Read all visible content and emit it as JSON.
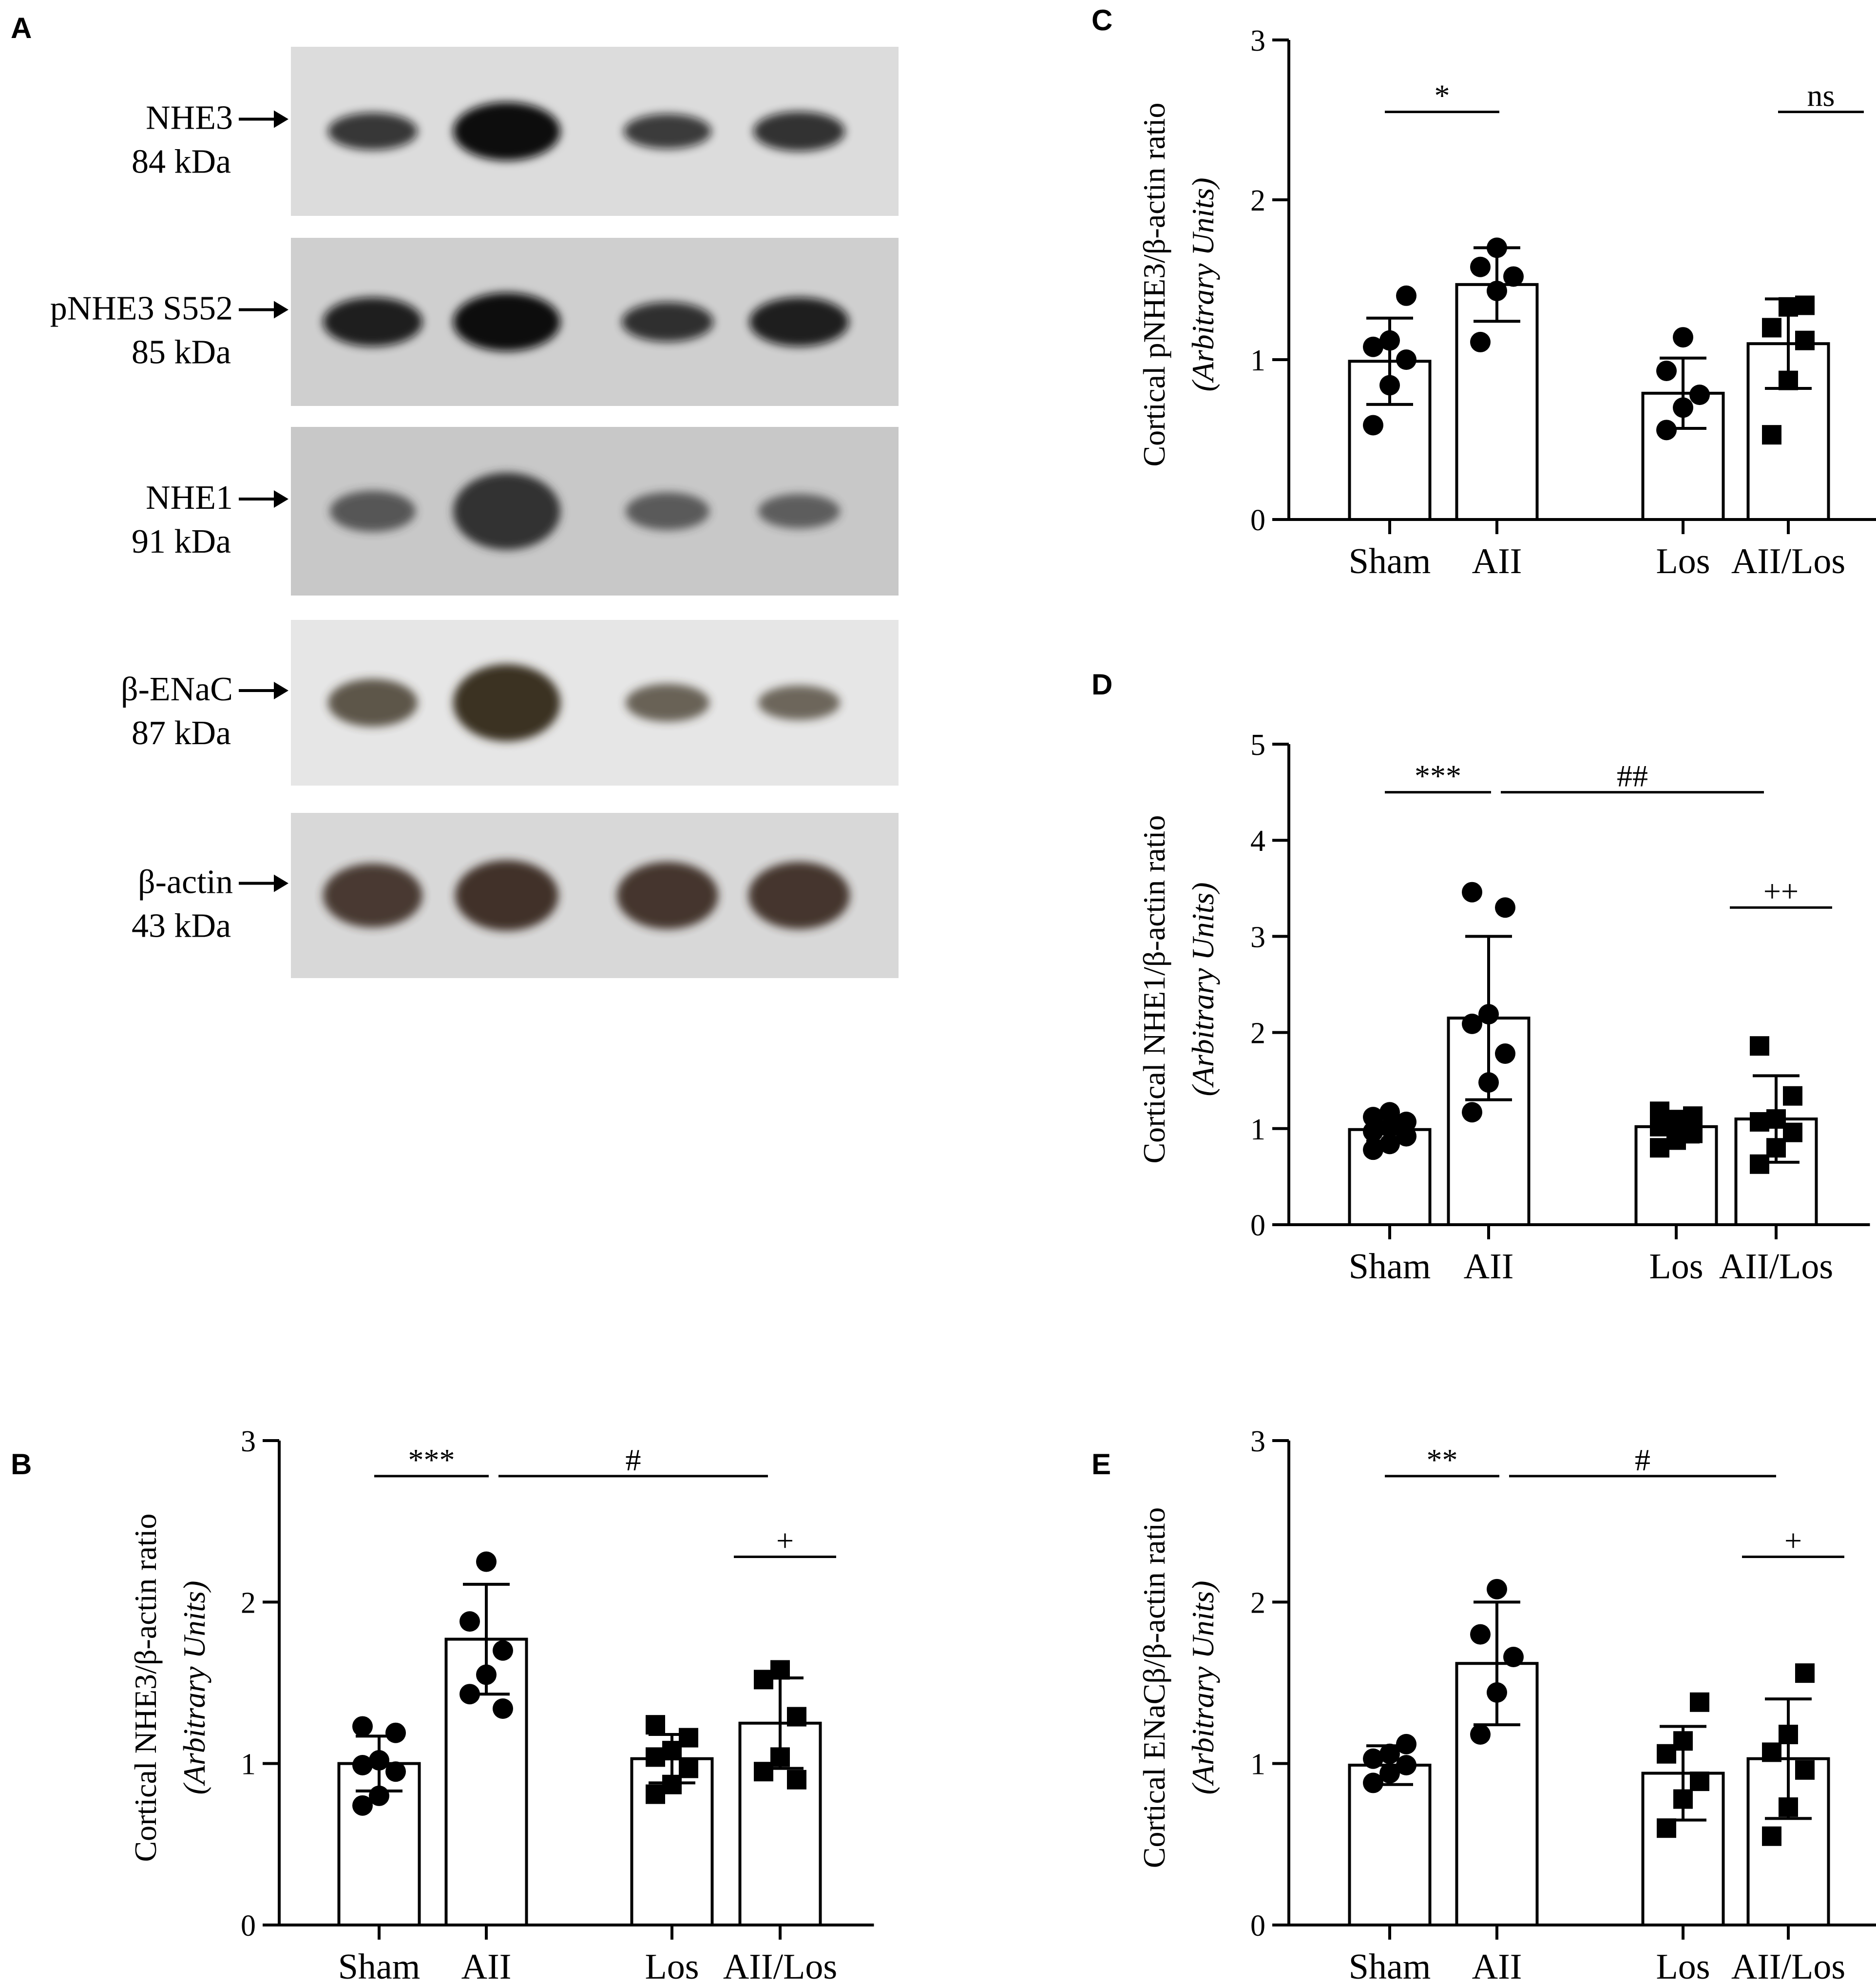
{
  "western_blot": {
    "panel": "A",
    "bands": [
      {
        "name": "NHE3",
        "size": "84 kDa",
        "intensity": [
          0.55,
          1.0,
          0.5,
          0.6
        ],
        "bg": "#dcdcdc",
        "ink": "#111111"
      },
      {
        "name": "pNHE3 S552",
        "size": "85 kDa",
        "intensity": [
          0.8,
          1.0,
          0.6,
          0.8
        ],
        "bg": "#cfcfcf",
        "ink": "#111111"
      },
      {
        "name": "NHE1",
        "size": "91 kDa",
        "intensity": [
          0.45,
          1.0,
          0.4,
          0.35
        ],
        "bg": "#c8c8c8",
        "ink": "#333333"
      },
      {
        "name": "β-ENaC",
        "size": "87 kDa",
        "intensity": [
          0.55,
          1.0,
          0.4,
          0.35
        ],
        "bg": "#e6e6e6",
        "ink": "#3a3322"
      },
      {
        "name": "β-actin",
        "size": "43 kDa",
        "intensity": [
          0.8,
          0.9,
          0.85,
          0.85
        ],
        "bg": "#d8d8d8",
        "ink": "#3a2a20"
      }
    ]
  },
  "chart_data": [
    {
      "panel": "B",
      "type": "bar",
      "categories": [
        "Sham",
        "AII",
        "Los",
        "AII/Los"
      ],
      "ylabel": "Cortical NHE3/β-actin ratio",
      "ylabel_italic": "(Arbitrary Units)",
      "ylim": [
        0,
        3
      ],
      "yticks": [
        "0",
        "1",
        "2",
        "3"
      ],
      "means": [
        1.0,
        1.77,
        1.03,
        1.25
      ],
      "sd": [
        0.17,
        0.34,
        0.15,
        0.28
      ],
      "markers": [
        "circle",
        "circle",
        "square",
        "square"
      ],
      "points": [
        [
          0.74,
          0.8,
          0.95,
          0.99,
          1.02,
          1.19,
          1.23
        ],
        [
          1.43,
          1.55,
          1.7,
          1.88,
          2.25,
          1.34
        ],
        [
          0.81,
          0.87,
          0.97,
          1.04,
          1.08,
          1.16,
          1.24
        ],
        [
          0.95,
          1.04,
          1.29,
          1.52,
          1.58,
          0.9
        ]
      ],
      "significance": [
        {
          "label": "***",
          "from": 0,
          "to": 1,
          "y": 2.78
        },
        {
          "label": "#",
          "from": 1,
          "to": 3,
          "y": 2.78
        },
        {
          "label": "+",
          "from": 3,
          "to": 3,
          "y": 2.28
        }
      ]
    },
    {
      "panel": "C",
      "type": "bar",
      "categories": [
        "Sham",
        "AII",
        "Los",
        "AII/Los"
      ],
      "ylabel": "Cortical pNHE3/β-actin ratio",
      "ylabel_italic": "(Arbitrary Units)",
      "ylim": [
        0,
        3
      ],
      "yticks": [
        "0",
        "1",
        "2",
        "3"
      ],
      "means": [
        0.99,
        1.47,
        0.79,
        1.1
      ],
      "sd": [
        0.27,
        0.23,
        0.22,
        0.28
      ],
      "markers": [
        "circle",
        "circle",
        "circle",
        "square"
      ],
      "points": [
        [
          0.59,
          0.84,
          1.0,
          1.08,
          1.12,
          1.4
        ],
        [
          1.11,
          1.43,
          1.52,
          1.58,
          1.7
        ],
        [
          0.56,
          0.7,
          0.78,
          0.93,
          1.14
        ],
        [
          0.53,
          0.87,
          1.12,
          1.2,
          1.33,
          1.34
        ]
      ],
      "significance": [
        {
          "label": "*",
          "from": 0,
          "to": 1,
          "y": 2.55
        },
        {
          "label": "ns",
          "from": 2.85,
          "to": 3.9,
          "y": 2.55
        }
      ]
    },
    {
      "panel": "D",
      "type": "bar",
      "categories": [
        "Sham",
        "AII",
        "Los",
        "AII/Los"
      ],
      "ylabel": "Cortical NHE1/β-actin ratio",
      "ylabel_italic": "(Arbitrary Units)",
      "ylim": [
        0,
        5
      ],
      "yticks": [
        "0",
        "1",
        "2",
        "3",
        "4",
        "5"
      ],
      "means": [
        0.99,
        2.15,
        1.02,
        1.1
      ],
      "sd": [
        0.12,
        0.85,
        0.16,
        0.45
      ],
      "markers": [
        "circle",
        "circle",
        "square",
        "square"
      ],
      "points": [
        [
          0.78,
          0.84,
          0.92,
          0.97,
          1.01,
          1.07,
          1.12,
          1.17
        ],
        [
          1.17,
          1.48,
          1.78,
          2.09,
          2.19,
          3.3,
          3.46
        ],
        [
          0.8,
          0.88,
          0.95,
          1.02,
          1.08,
          1.13,
          1.18
        ],
        [
          0.63,
          0.8,
          0.96,
          1.07,
          1.1,
          1.34,
          1.86
        ]
      ],
      "significance": [
        {
          "label": "***",
          "from": 0,
          "to": 1,
          "y": 4.5
        },
        {
          "label": "##",
          "from": 1,
          "to": 3,
          "y": 4.5
        },
        {
          "label": "++",
          "from": 3,
          "to": 3,
          "y": 3.3
        }
      ]
    },
    {
      "panel": "E",
      "type": "bar",
      "categories": [
        "Sham",
        "AII",
        "Los",
        "AII/Los"
      ],
      "ylabel": "Cortical ENaCβ/β-actin ratio",
      "ylabel_italic": "(Arbitrary Units)",
      "ylim": [
        0,
        3
      ],
      "yticks": [
        "0",
        "1",
        "2",
        "3"
      ],
      "means": [
        0.99,
        1.62,
        0.94,
        1.03
      ],
      "sd": [
        0.12,
        0.38,
        0.29,
        0.37
      ],
      "markers": [
        "circle",
        "circle",
        "square",
        "square"
      ],
      "points": [
        [
          0.88,
          0.94,
          0.99,
          1.03,
          1.06,
          1.12
        ],
        [
          1.18,
          1.44,
          1.66,
          1.8,
          2.08
        ],
        [
          0.6,
          0.78,
          0.89,
          1.06,
          1.14,
          1.38
        ],
        [
          0.55,
          0.73,
          0.96,
          1.07,
          1.18,
          1.56
        ]
      ],
      "significance": [
        {
          "label": "**",
          "from": 0,
          "to": 1,
          "y": 2.78
        },
        {
          "label": "#",
          "from": 1,
          "to": 3,
          "y": 2.78
        },
        {
          "label": "+",
          "from": 3,
          "to": 3,
          "y": 2.28
        }
      ]
    }
  ]
}
